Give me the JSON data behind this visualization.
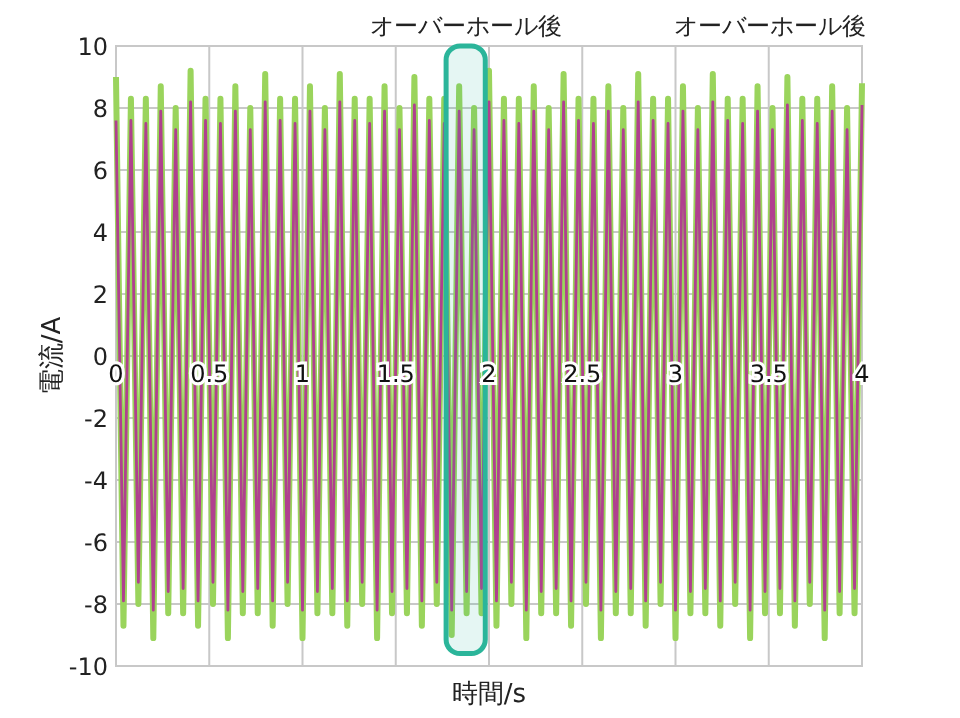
{
  "chart_data": {
    "type": "line",
    "xlabel": "時間/s",
    "ylabel": "電流/A",
    "xlim": [
      0,
      4
    ],
    "ylim": [
      -10,
      10
    ],
    "xticks": [
      0,
      0.5,
      1,
      1.5,
      2,
      2.5,
      3,
      3.5,
      4
    ],
    "yticks": [
      -10,
      -8,
      -6,
      -4,
      -2,
      0,
      2,
      4,
      6,
      8,
      10
    ],
    "grid": true,
    "marker": "none",
    "x": [
      0,
      0.04,
      0.08,
      0.12,
      0.16,
      0.2,
      0.24,
      0.28,
      0.32,
      0.36,
      0.4,
      0.44,
      0.48,
      0.52,
      0.56,
      0.6,
      0.64,
      0.68,
      0.72,
      0.76,
      0.8,
      0.84,
      0.88,
      0.92,
      0.96,
      1,
      1.04,
      1.08,
      1.12,
      1.16,
      1.2,
      1.24,
      1.28,
      1.32,
      1.36,
      1.4,
      1.44,
      1.48,
      1.52,
      1.56,
      1.6,
      1.64,
      1.68,
      1.72,
      1.76,
      1.8,
      1.84,
      1.88,
      1.92,
      1.96,
      2,
      2.04,
      2.08,
      2.12,
      2.16,
      2.2,
      2.24,
      2.28,
      2.32,
      2.36,
      2.4,
      2.44,
      2.48,
      2.52,
      2.56,
      2.6,
      2.64,
      2.68,
      2.72,
      2.76,
      2.8,
      2.84,
      2.88,
      2.92,
      2.96,
      3,
      3.04,
      3.08,
      3.12,
      3.16,
      3.2,
      3.24,
      3.28,
      3.32,
      3.36,
      3.4,
      3.44,
      3.48,
      3.52,
      3.56,
      3.6,
      3.64,
      3.68,
      3.72,
      3.76,
      3.8,
      3.84,
      3.88,
      3.92,
      3.96,
      4
    ],
    "series": [
      {
        "color": "#9ad45c",
        "values": [
          9.0,
          -8.7,
          8.3,
          -8.0,
          8.3,
          -9.1,
          8.7,
          -8.3,
          8.0,
          -8.3,
          9.2,
          -8.7,
          8.3,
          -8.0,
          8.3,
          -9.1,
          8.7,
          -8.3,
          8.0,
          -8.3,
          9.1,
          -8.7,
          8.3,
          -8.0,
          8.3,
          -9.1,
          8.7,
          -8.3,
          8.0,
          -8.3,
          9.1,
          -8.7,
          8.3,
          -8.0,
          8.3,
          -9.1,
          8.7,
          -8.3,
          8.0,
          -8.3,
          9.0,
          -8.7,
          8.3,
          -8.0,
          8.3,
          -9.0,
          8.7,
          -8.3,
          8.0,
          -8.3,
          9.2,
          -8.7,
          8.3,
          -8.0,
          8.3,
          -9.1,
          8.7,
          -8.3,
          8.0,
          -8.3,
          9.1,
          -8.7,
          8.3,
          -8.0,
          8.3,
          -9.1,
          8.7,
          -8.3,
          8.0,
          -8.3,
          9.1,
          -8.7,
          8.3,
          -8.0,
          8.3,
          -9.1,
          8.7,
          -8.3,
          8.0,
          -8.3,
          9.1,
          -8.7,
          8.3,
          -8.0,
          8.3,
          -9.1,
          8.7,
          -8.3,
          8.0,
          -8.3,
          9.0,
          -8.7,
          8.3,
          -8.0,
          8.3,
          -9.1,
          8.7,
          -8.3,
          8.0,
          -8.3,
          8.8
        ]
      },
      {
        "color": "#b0408f",
        "values": [
          7.6,
          -7.9,
          7.6,
          -7.3,
          7.5,
          -8.2,
          7.9,
          -7.6,
          7.3,
          -7.5,
          8.2,
          -7.9,
          7.6,
          -7.3,
          7.5,
          -8.2,
          7.9,
          -7.6,
          7.3,
          -7.5,
          8.2,
          -7.9,
          7.6,
          -7.3,
          7.5,
          -8.2,
          7.9,
          -7.6,
          7.3,
          -7.5,
          8.2,
          -7.9,
          7.6,
          -7.3,
          7.5,
          -8.2,
          7.9,
          -7.6,
          7.3,
          -7.5,
          8.1,
          -7.9,
          7.6,
          -7.3,
          7.5,
          -8.2,
          7.9,
          -7.6,
          7.3,
          -7.5,
          8.2,
          -7.9,
          7.6,
          -7.3,
          7.5,
          -8.2,
          7.9,
          -7.6,
          7.3,
          -7.5,
          8.2,
          -7.9,
          7.6,
          -7.3,
          7.5,
          -8.2,
          7.9,
          -7.6,
          7.3,
          -7.5,
          8.2,
          -7.9,
          7.6,
          -7.3,
          7.5,
          -8.2,
          7.9,
          -7.6,
          7.3,
          -7.5,
          8.2,
          -7.9,
          7.6,
          -7.3,
          7.5,
          -8.2,
          7.9,
          -7.6,
          7.3,
          -7.5,
          8.1,
          -7.9,
          7.6,
          -7.3,
          7.5,
          -8.2,
          7.9,
          -7.6,
          7.3,
          -7.5,
          8.1
        ]
      }
    ],
    "bands": [
      {
        "axis": "x",
        "from": 1.77,
        "to": 1.98,
        "label": "オーバーホール後",
        "color": "#2bb59a"
      }
    ],
    "annotations": [
      "オーバーホール後"
    ]
  }
}
